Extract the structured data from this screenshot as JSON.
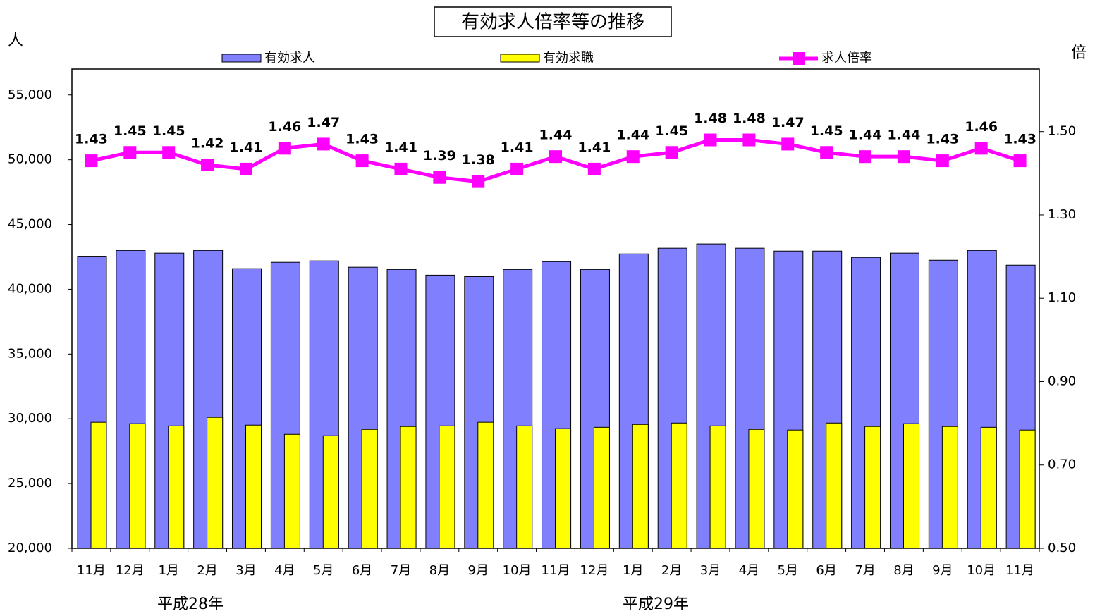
{
  "chart_data": {
    "type": "bar",
    "title": "有効求人倍率等の推移",
    "y_label": "人",
    "y2_label": "倍",
    "categories": [
      "11月",
      "12月",
      "1月",
      "2月",
      "3月",
      "4月",
      "5月",
      "6月",
      "7月",
      "8月",
      "9月",
      "10月",
      "11月",
      "12月",
      "1月",
      "2月",
      "3月",
      "4月",
      "5月",
      "6月",
      "7月",
      "8月",
      "9月",
      "10月",
      "11月"
    ],
    "year_labels": [
      "平成28年",
      "平成29年"
    ],
    "series": [
      {
        "name": "有効求人",
        "type": "bar",
        "color": "#8080ff",
        "values": [
          42550,
          43000,
          42790,
          43000,
          41590,
          42080,
          42190,
          41700,
          41530,
          41090,
          40980,
          41530,
          42130,
          41530,
          42730,
          43170,
          43500,
          43170,
          42950,
          42950,
          42460,
          42790,
          42240,
          43000,
          41860
        ]
      },
      {
        "name": "有効求職",
        "type": "bar",
        "color": "#ffff00",
        "values": [
          29730,
          29620,
          29450,
          30110,
          29510,
          28800,
          28690,
          29180,
          29400,
          29450,
          29730,
          29450,
          29240,
          29340,
          29560,
          29670,
          29450,
          29180,
          29130,
          29670,
          29400,
          29620,
          29400,
          29340,
          29130
        ]
      },
      {
        "name": "求人倍率",
        "type": "line",
        "axis": "y2",
        "color": "#ff00ff",
        "values": [
          1.43,
          1.45,
          1.45,
          1.42,
          1.41,
          1.46,
          1.47,
          1.43,
          1.41,
          1.39,
          1.38,
          1.41,
          1.44,
          1.41,
          1.44,
          1.45,
          1.48,
          1.48,
          1.47,
          1.45,
          1.44,
          1.44,
          1.43,
          1.46,
          1.43
        ]
      }
    ],
    "ylim": [
      20000,
      57000
    ],
    "yticks": [
      {
        "value": 20000,
        "label": "20,000"
      },
      {
        "value": 25000,
        "label": "25,000"
      },
      {
        "value": 30000,
        "label": "30,000"
      },
      {
        "value": 35000,
        "label": "35,000"
      },
      {
        "value": 40000,
        "label": "40,000"
      },
      {
        "value": 45000,
        "label": "45,000"
      },
      {
        "value": 50000,
        "label": "50,000"
      },
      {
        "value": 55000,
        "label": "55,000"
      }
    ],
    "y2lim": [
      0.5,
      1.65
    ],
    "y2ticks": [
      {
        "value": 0.5,
        "label": "0.50"
      },
      {
        "value": 0.7,
        "label": "0.70"
      },
      {
        "value": 0.9,
        "label": "0.90"
      },
      {
        "value": 1.1,
        "label": "1.10"
      },
      {
        "value": 1.3,
        "label": "1.30"
      },
      {
        "value": 1.5,
        "label": "1.50"
      }
    ],
    "grid": false,
    "legend": "top"
  }
}
